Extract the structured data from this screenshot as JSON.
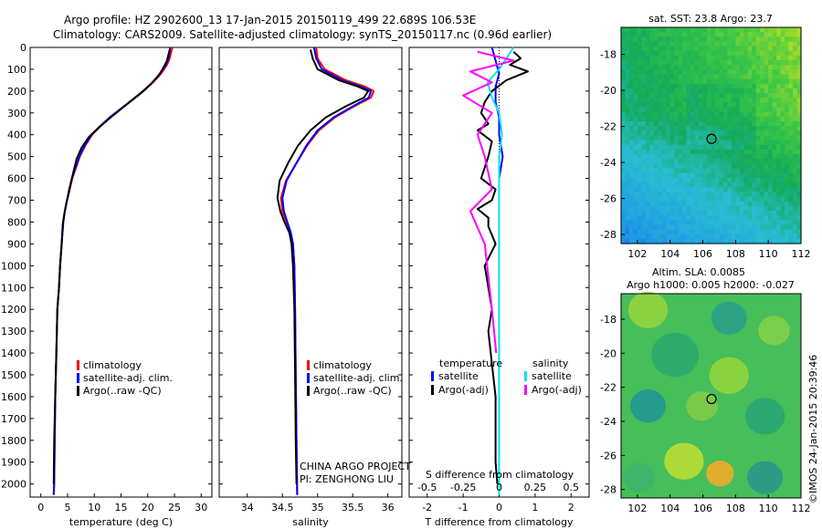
{
  "header": {
    "title_line1": "Argo profile: HZ 2902600_13 17-Jan-2015 20150119_499 22.689S 106.53E",
    "title_line2": "Climatology: CARS2009. Satellite-adjusted climatology: synTS_20150117.nc (0.96d earlier)"
  },
  "colors": {
    "climatology": "#ff0000",
    "satellite": "#0000ff",
    "argo": "#000000",
    "sal_satellite": "#00e5ee",
    "sal_argo": "#ff00ff"
  },
  "footer": {
    "project": "CHINA ARGO PROJECT",
    "pi": "PI: ZENGHONG LIU",
    "credit": "©IMOS 24-Jan-2015 20:39:46"
  },
  "depth_ticks": [
    0,
    100,
    200,
    300,
    400,
    500,
    600,
    700,
    800,
    900,
    1000,
    1100,
    1200,
    1300,
    1400,
    1500,
    1600,
    1700,
    1800,
    1900,
    2000
  ],
  "chart_data": [
    {
      "type": "line",
      "id": "temperature",
      "xlabel": "temperature (deg C)",
      "xlim": [
        -2,
        32
      ],
      "ylim": [
        0,
        2060
      ],
      "xticks": [
        0,
        5,
        10,
        15,
        20,
        25,
        30
      ],
      "legend": [
        "climatology",
        "satellite-adj. clim.",
        "Argo(..raw -QC)"
      ],
      "series": [
        {
          "name": "climatology",
          "color": "#ff0000",
          "width": 2,
          "x": [
            24.6,
            24.4,
            24.1,
            23.6,
            22.5,
            21.0,
            19.2,
            17.2,
            15.1,
            13.0,
            11.2,
            9.6,
            8.3,
            7.3,
            6.6,
            5.9,
            5.4,
            4.9,
            4.5,
            4.2,
            3.9,
            3.6,
            3.4,
            3.1,
            2.9,
            2.7,
            2.6,
            2.5,
            2.4
          ],
          "y": [
            0,
            20,
            50,
            80,
            120,
            160,
            200,
            240,
            280,
            320,
            360,
            400,
            450,
            500,
            550,
            600,
            650,
            700,
            750,
            800,
            900,
            1000,
            1100,
            1200,
            1400,
            1600,
            1800,
            2000,
            2050
          ]
        },
        {
          "name": "satellite-adj. clim.",
          "color": "#0000ff",
          "width": 2,
          "x": [
            24.2,
            24.1,
            23.9,
            23.4,
            22.3,
            20.9,
            19.1,
            17.1,
            15.0,
            12.9,
            11.1,
            9.5,
            8.2,
            7.2,
            6.5,
            5.8,
            5.3,
            4.9,
            4.5,
            4.2,
            3.9,
            3.6,
            3.4,
            3.1,
            2.9,
            2.7,
            2.6,
            2.5,
            2.4
          ],
          "y": [
            0,
            20,
            50,
            80,
            120,
            160,
            200,
            240,
            280,
            320,
            360,
            400,
            450,
            500,
            550,
            600,
            650,
            700,
            750,
            800,
            900,
            1000,
            1100,
            1200,
            1400,
            1600,
            1800,
            2000,
            2050
          ]
        },
        {
          "name": "Argo(..raw -QC)",
          "color": "#000000",
          "width": 2,
          "x": [
            24.1,
            23.9,
            23.6,
            23.0,
            22.0,
            20.5,
            18.7,
            16.6,
            14.6,
            12.6,
            10.7,
            9.0,
            7.6,
            6.7,
            6.2,
            5.7,
            5.3,
            4.8,
            4.4,
            4.1,
            3.9,
            3.6,
            3.4,
            3.1,
            2.9,
            2.7,
            2.5,
            2.4
          ],
          "y": [
            10,
            30,
            60,
            90,
            130,
            170,
            210,
            250,
            290,
            330,
            370,
            410,
            460,
            510,
            560,
            610,
            660,
            710,
            760,
            810,
            900,
            1000,
            1100,
            1200,
            1400,
            1600,
            1800,
            2000
          ]
        }
      ]
    },
    {
      "type": "line",
      "id": "salinity",
      "xlabel": "salinity",
      "xlim": [
        33.6,
        36.2
      ],
      "ylim": [
        0,
        2060
      ],
      "xticks": [
        34,
        34.5,
        35,
        35.5,
        36
      ],
      "xticklabels": [
        "34",
        "34.5",
        "35",
        "35.5",
        "36"
      ],
      "legend": [
        "climatology",
        "satellite-adj. clim.",
        "Argo(..raw -QC)"
      ],
      "series": [
        {
          "name": "climatology",
          "color": "#ff0000",
          "width": 2,
          "x": [
            34.98,
            35.0,
            35.1,
            35.4,
            35.68,
            35.8,
            35.76,
            35.52,
            35.25,
            35.02,
            34.85,
            34.7,
            34.55,
            34.48,
            34.5,
            34.56,
            34.62,
            34.65,
            34.67,
            34.68,
            34.69,
            34.7,
            34.71
          ],
          "y": [
            0,
            50,
            100,
            150,
            180,
            200,
            230,
            270,
            320,
            380,
            450,
            530,
            610,
            690,
            750,
            800,
            850,
            900,
            1000,
            1200,
            1500,
            1800,
            2050
          ]
        },
        {
          "name": "satellite-adj. clim.",
          "color": "#0000ff",
          "width": 2,
          "x": [
            34.95,
            34.98,
            35.06,
            35.35,
            35.62,
            35.76,
            35.73,
            35.5,
            35.23,
            35.0,
            34.84,
            34.7,
            34.56,
            34.5,
            34.52,
            34.57,
            34.62,
            34.65,
            34.67,
            34.68,
            34.69,
            34.7,
            34.71
          ],
          "y": [
            0,
            50,
            100,
            150,
            180,
            200,
            230,
            270,
            320,
            380,
            450,
            530,
            610,
            690,
            750,
            800,
            850,
            900,
            1000,
            1200,
            1500,
            1800,
            2050
          ]
        },
        {
          "name": "Argo(..raw -QC)",
          "color": "#000000",
          "width": 2,
          "x": [
            34.9,
            34.93,
            35.0,
            35.3,
            35.58,
            35.72,
            35.66,
            35.4,
            35.12,
            34.9,
            34.72,
            34.58,
            34.46,
            34.43,
            34.47,
            34.53,
            34.6,
            34.63,
            34.65,
            34.67,
            34.68,
            34.69,
            34.7
          ],
          "y": [
            10,
            50,
            100,
            150,
            180,
            200,
            230,
            270,
            320,
            380,
            450,
            530,
            610,
            690,
            750,
            800,
            850,
            900,
            1000,
            1200,
            1500,
            1800,
            2000
          ]
        }
      ]
    },
    {
      "type": "line",
      "id": "difference",
      "xlabel": "T difference from climatology",
      "xlabel_top": "S difference from climatology",
      "xlim": [
        -2.5,
        2.5
      ],
      "ylim": [
        0,
        2060
      ],
      "xticks": [
        -2,
        -1,
        0,
        1,
        2
      ],
      "xticklabels": [
        "-2",
        "-1",
        "0",
        "1",
        "2"
      ],
      "s_ticks": [
        -0.5,
        -0.25,
        0,
        0.25,
        0.5
      ],
      "s_ticklabels": [
        "-0.5",
        "-0.25",
        "0",
        "0.25",
        "0.5"
      ],
      "s_scale": 4,
      "legend_headers": [
        "temperature",
        "salinity"
      ],
      "legend_temp": [
        "satellite",
        "Argo(-adj)"
      ],
      "legend_sal": [
        "satellite",
        "Argo(-adj)"
      ],
      "series": [
        {
          "name": "satellite",
          "group": "temperature",
          "color": "#0000ff",
          "width": 2,
          "x": [
            -0.2,
            -0.1,
            0.0,
            -0.1,
            -0.1,
            0.0,
            0.0,
            0.1,
            0.0,
            0.0,
            0.0,
            0.0,
            0.0,
            0.0,
            0.0,
            0.0
          ],
          "y": [
            0,
            60,
            120,
            180,
            250,
            320,
            400,
            500,
            600,
            700,
            800,
            1000,
            1200,
            1500,
            1800,
            2050
          ]
        },
        {
          "name": "Argo(-adj)",
          "group": "temperature",
          "color": "#000000",
          "width": 2,
          "x": [
            0.4,
            0.6,
            0.3,
            0.8,
            0.2,
            -0.2,
            -0.4,
            -0.5,
            -0.3,
            -0.6,
            -0.2,
            -0.3,
            -0.5,
            -0.1,
            -0.2,
            -0.6,
            -0.3,
            -0.3,
            -0.1,
            -0.4,
            -0.3,
            -0.2,
            -0.3,
            -0.2,
            -0.1,
            -0.1,
            -0.1,
            -0.05
          ],
          "y": [
            20,
            50,
            80,
            110,
            150,
            200,
            250,
            300,
            350,
            380,
            430,
            500,
            600,
            650,
            700,
            740,
            780,
            820,
            900,
            1000,
            1100,
            1200,
            1300,
            1450,
            1600,
            1800,
            1900,
            2000
          ]
        },
        {
          "name": "satellite",
          "group": "salinity",
          "color": "#00e5ee",
          "width": 2,
          "x": [
            0.1,
            0.05,
            0.0,
            -0.08,
            -0.05,
            0.0,
            0.02,
            0.0,
            0.0,
            0.0,
            0.0,
            0.0,
            0.0
          ],
          "y": [
            0,
            50,
            100,
            160,
            230,
            300,
            400,
            500,
            700,
            1000,
            1400,
            1800,
            2050
          ]
        },
        {
          "name": "Argo(-adj)",
          "group": "salinity",
          "color": "#ff00ff",
          "width": 2,
          "x": [
            -0.15,
            0.1,
            -0.2,
            -0.05,
            -0.25,
            -0.05,
            -0.15,
            -0.1,
            -0.05,
            -0.2,
            -0.1,
            -0.05,
            -0.02
          ],
          "y": [
            20,
            60,
            110,
            160,
            220,
            300,
            400,
            500,
            650,
            750,
            900,
            1200,
            1400
          ]
        }
      ]
    },
    {
      "type": "heatmap",
      "id": "sst-map",
      "title": "sat. SST: 23.8 Argo: 23.7",
      "xlim": [
        101,
        112
      ],
      "ylim": [
        -28.5,
        -16.5
      ],
      "xticks": [
        102,
        104,
        106,
        108,
        110,
        112
      ],
      "yticks": [
        -18,
        -20,
        -22,
        -24,
        -26,
        -28
      ],
      "marker": [
        106.53,
        -22.689
      ]
    },
    {
      "type": "heatmap",
      "id": "sla-map",
      "title": "Altim. SLA: 0.0085",
      "title2": "Argo h1000: 0.005 h2000: -0.027",
      "xlim": [
        101,
        112
      ],
      "ylim": [
        -28.5,
        -16.5
      ],
      "xticks": [
        102,
        104,
        106,
        108,
        110,
        112
      ],
      "yticks": [
        -18,
        -20,
        -22,
        -24,
        -26,
        -28
      ],
      "marker": [
        106.53,
        -22.689
      ]
    }
  ]
}
